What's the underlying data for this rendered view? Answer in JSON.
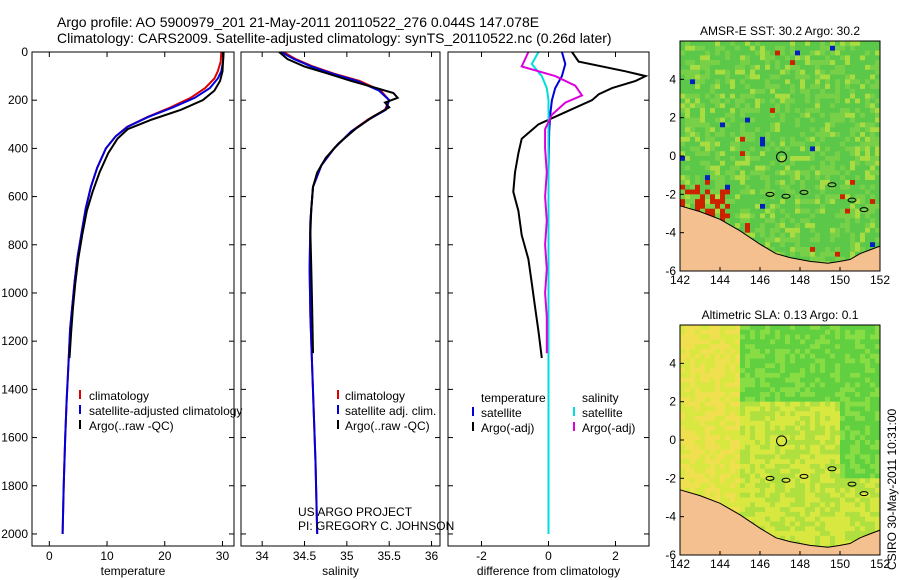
{
  "header": {
    "line1": "Argo profile: AO 5900979_201 21-May-2011 20110522_276 0.044S 147.078E",
    "line2": "Climatology: CARS2009. Satellite-adjusted climatology: synTS_20110522.nc (0.26d later)"
  },
  "side_stamp": "CSIRO 30-May-2011 10:31:00",
  "chart_data": [
    {
      "type": "line",
      "name": "temperature-panel",
      "xlabel": "temperature",
      "ylabel": "",
      "xlim": [
        -3,
        32
      ],
      "ylim": [
        2050,
        0
      ],
      "xticks": [
        0,
        10,
        20,
        30
      ],
      "xtick_labels": [
        "0",
        "10",
        "20",
        "30"
      ],
      "yticks": [
        0,
        200,
        400,
        600,
        800,
        1000,
        1200,
        1400,
        1600,
        1800,
        2000
      ],
      "ytick_labels": [
        "0",
        "200",
        "400",
        "600",
        "800",
        "1000",
        "1200",
        "1400",
        "1600",
        "1800",
        "2000"
      ],
      "legend": [
        "climatology",
        "satellite-adjusted climatology",
        "Argo(..raw -QC)"
      ],
      "legend_placement": "lower-right",
      "series": [
        {
          "name": "climatology",
          "color": "#dd0000",
          "points": [
            [
              29.8,
              0
            ],
            [
              29.7,
              40
            ],
            [
              29.2,
              80
            ],
            [
              28.6,
              110
            ],
            [
              27.0,
              150
            ],
            [
              24.5,
              190
            ],
            [
              21.0,
              230
            ],
            [
              17.0,
              270
            ],
            [
              13.5,
              310
            ],
            [
              11.5,
              350
            ],
            [
              9.8,
              400
            ],
            [
              8.3,
              480
            ],
            [
              7.2,
              560
            ],
            [
              6.3,
              650
            ],
            [
              5.6,
              750
            ],
            [
              4.9,
              850
            ],
            [
              4.4,
              950
            ],
            [
              4.0,
              1050
            ],
            [
              3.6,
              1150
            ],
            [
              3.3,
              1300
            ],
            [
              3.0,
              1450
            ],
            [
              2.75,
              1600
            ],
            [
              2.5,
              1800
            ],
            [
              2.3,
              2000
            ]
          ]
        },
        {
          "name": "satellite-adjusted climatology",
          "color": "#0000dd",
          "points": [
            [
              30.2,
              0
            ],
            [
              30.1,
              40
            ],
            [
              29.8,
              80
            ],
            [
              29.2,
              110
            ],
            [
              27.8,
              150
            ],
            [
              25.2,
              190
            ],
            [
              21.4,
              230
            ],
            [
              17.1,
              270
            ],
            [
              13.6,
              310
            ],
            [
              11.5,
              350
            ],
            [
              9.8,
              400
            ],
            [
              8.3,
              480
            ],
            [
              7.2,
              560
            ],
            [
              6.3,
              650
            ],
            [
              5.6,
              750
            ],
            [
              4.9,
              850
            ],
            [
              4.4,
              950
            ],
            [
              4.0,
              1050
            ],
            [
              3.6,
              1150
            ],
            [
              3.3,
              1300
            ],
            [
              3.0,
              1450
            ],
            [
              2.75,
              1600
            ],
            [
              2.5,
              1800
            ],
            [
              2.3,
              2000
            ]
          ]
        },
        {
          "name": "Argo(..raw -QC)",
          "color": "#000000",
          "points": [
            [
              30.2,
              0
            ],
            [
              30.1,
              40
            ],
            [
              30.0,
              80
            ],
            [
              29.6,
              120
            ],
            [
              28.6,
              160
            ],
            [
              26.6,
              200
            ],
            [
              22.8,
              240
            ],
            [
              17.8,
              280
            ],
            [
              13.6,
              320
            ],
            [
              11.8,
              360
            ],
            [
              10.2,
              420
            ],
            [
              8.7,
              500
            ],
            [
              7.5,
              580
            ],
            [
              6.5,
              660
            ],
            [
              5.7,
              760
            ],
            [
              5.0,
              860
            ],
            [
              4.5,
              960
            ],
            [
              4.1,
              1060
            ],
            [
              3.8,
              1160
            ],
            [
              3.5,
              1270
            ]
          ]
        }
      ]
    },
    {
      "type": "line",
      "name": "salinity-panel",
      "xlabel": "salinity",
      "ylabel": "",
      "xlim": [
        33.75,
        36.1
      ],
      "ylim": [
        2050,
        0
      ],
      "xticks": [
        34,
        34.5,
        35,
        35.5,
        36
      ],
      "xtick_labels": [
        "34",
        "34.5",
        "35",
        "35.5",
        "36"
      ],
      "legend": [
        "climatology",
        "satellite adj. clim.",
        "Argo(..raw -QC)"
      ],
      "legend_placement": "lower-right",
      "annotation": [
        "US ARGO PROJECT",
        "PI: GREGORY C. JOHNSON"
      ],
      "series": [
        {
          "name": "climatology",
          "color": "#dd0000",
          "points": [
            [
              34.25,
              0
            ],
            [
              34.4,
              30
            ],
            [
              34.6,
              60
            ],
            [
              34.85,
              90
            ],
            [
              35.15,
              120
            ],
            [
              35.4,
              160
            ],
            [
              35.5,
              200
            ],
            [
              35.45,
              240
            ],
            [
              35.25,
              280
            ],
            [
              35.05,
              330
            ],
            [
              34.85,
              400
            ],
            [
              34.7,
              470
            ],
            [
              34.6,
              560
            ],
            [
              34.57,
              700
            ],
            [
              34.56,
              900
            ],
            [
              34.57,
              1100
            ],
            [
              34.59,
              1300
            ],
            [
              34.61,
              1500
            ],
            [
              34.63,
              1700
            ],
            [
              34.65,
              2000
            ]
          ]
        },
        {
          "name": "satellite adj. clim.",
          "color": "#0000dd",
          "points": [
            [
              34.22,
              0
            ],
            [
              34.38,
              30
            ],
            [
              34.58,
              60
            ],
            [
              34.83,
              90
            ],
            [
              35.12,
              120
            ],
            [
              35.38,
              160
            ],
            [
              35.5,
              200
            ],
            [
              35.46,
              240
            ],
            [
              35.26,
              280
            ],
            [
              35.05,
              330
            ],
            [
              34.85,
              400
            ],
            [
              34.7,
              470
            ],
            [
              34.6,
              560
            ],
            [
              34.57,
              700
            ],
            [
              34.56,
              900
            ],
            [
              34.57,
              1100
            ],
            [
              34.59,
              1300
            ],
            [
              34.61,
              1500
            ],
            [
              34.63,
              1700
            ],
            [
              34.65,
              2000
            ]
          ]
        },
        {
          "name": "Argo(..raw -QC)",
          "color": "#000000",
          "points": [
            [
              34.2,
              0
            ],
            [
              34.3,
              30
            ],
            [
              34.5,
              60
            ],
            [
              34.78,
              90
            ],
            [
              35.05,
              120
            ],
            [
              35.35,
              150
            ],
            [
              35.55,
              170
            ],
            [
              35.6,
              190
            ],
            [
              35.45,
              210
            ],
            [
              35.5,
              230
            ],
            [
              35.3,
              270
            ],
            [
              35.1,
              320
            ],
            [
              34.9,
              380
            ],
            [
              34.75,
              440
            ],
            [
              34.65,
              500
            ],
            [
              34.6,
              560
            ],
            [
              34.58,
              650
            ],
            [
              34.57,
              750
            ],
            [
              34.58,
              900
            ],
            [
              34.59,
              1050
            ],
            [
              34.6,
              1250
            ]
          ]
        }
      ]
    },
    {
      "type": "line",
      "name": "difference-panel",
      "xlabel": "difference from climatology",
      "ylabel": "",
      "xlim": [
        -3,
        3
      ],
      "ylim": [
        2050,
        0
      ],
      "xticks": [
        -2,
        0,
        2
      ],
      "xtick_labels": [
        "-2",
        "0",
        "2"
      ],
      "legend_headers": [
        "temperature",
        "salinity"
      ],
      "legend": [
        "satellite",
        "Argo(-adj)",
        "satellite",
        "Argo(-adj)"
      ],
      "legend_placement": "lower-center",
      "series": [
        {
          "name": "temperature satellite",
          "color": "#0000dd",
          "points": [
            [
              0.4,
              0
            ],
            [
              0.5,
              50
            ],
            [
              0.4,
              100
            ],
            [
              0.2,
              150
            ],
            [
              0.1,
              200
            ],
            [
              0.05,
              260
            ],
            [
              0.02,
              330
            ],
            [
              0,
              500
            ],
            [
              0,
              1000
            ],
            [
              0,
              1500
            ],
            [
              0,
              2000
            ]
          ]
        },
        {
          "name": "temperature Argo(-adj)",
          "color": "#000000",
          "points": [
            [
              0.7,
              0
            ],
            [
              0.9,
              40
            ],
            [
              2.3,
              80
            ],
            [
              2.9,
              100
            ],
            [
              2.6,
              120
            ],
            [
              1.9,
              150
            ],
            [
              1.5,
              175
            ],
            [
              1.3,
              200
            ],
            [
              0.5,
              250
            ],
            [
              -0.3,
              300
            ],
            [
              -0.8,
              360
            ],
            [
              -0.9,
              420
            ],
            [
              -1.0,
              500
            ],
            [
              -1.05,
              580
            ],
            [
              -0.9,
              660
            ],
            [
              -0.8,
              760
            ],
            [
              -0.6,
              860
            ],
            [
              -0.5,
              960
            ],
            [
              -0.4,
              1060
            ],
            [
              -0.3,
              1160
            ],
            [
              -0.2,
              1270
            ]
          ]
        },
        {
          "name": "salinity satellite",
          "color": "#00dddd",
          "points": [
            [
              -0.3,
              0
            ],
            [
              -0.5,
              50
            ],
            [
              -0.2,
              100
            ],
            [
              -0.05,
              150
            ],
            [
              0,
              200
            ],
            [
              0,
              300
            ],
            [
              0,
              500
            ],
            [
              0,
              1000
            ],
            [
              0,
              1500
            ],
            [
              0,
              2000
            ]
          ]
        },
        {
          "name": "salinity Argo(-adj)",
          "color": "#dd00dd",
          "points": [
            [
              -0.6,
              0
            ],
            [
              -0.8,
              60
            ],
            [
              0.2,
              100
            ],
            [
              0.8,
              140
            ],
            [
              1.0,
              180
            ],
            [
              0.5,
              210
            ],
            [
              0.1,
              260
            ],
            [
              -0.1,
              320
            ],
            [
              -0.1,
              400
            ],
            [
              -0.05,
              500
            ],
            [
              -0.1,
              600
            ],
            [
              -0.05,
              700
            ],
            [
              -0.1,
              800
            ],
            [
              -0.05,
              900
            ],
            [
              -0.1,
              1000
            ],
            [
              -0.05,
              1100
            ],
            [
              -0.05,
              1250
            ]
          ]
        }
      ]
    },
    {
      "type": "heatmap",
      "name": "amsr-map",
      "title": "AMSR-E SST: 30.2 Argo: 30.2",
      "xlim": [
        142,
        152
      ],
      "ylim": [
        -6,
        6
      ],
      "xticks": [
        142,
        144,
        146,
        148,
        150,
        152
      ],
      "yticks": [
        -6,
        -4,
        -2,
        0,
        2,
        4
      ],
      "argo_marker": [
        147.078,
        -0.044
      ],
      "colors": {
        "field": "#5cc84a",
        "field_light": "#a8dc40",
        "land": "#f4c090",
        "warm": "#cc2200",
        "cold": "#0020c0"
      }
    },
    {
      "type": "heatmap",
      "name": "sla-map",
      "title": "Altimetric SLA: 0.13 Argo: 0.1",
      "xlim": [
        142,
        152
      ],
      "ylim": [
        -6,
        6
      ],
      "xticks": [
        142,
        144,
        146,
        148,
        150,
        152
      ],
      "yticks": [
        -6,
        -4,
        -2,
        0,
        2,
        4
      ],
      "argo_marker": [
        147.078,
        -0.044
      ],
      "colors": {
        "field": "#d8e840",
        "field_green": "#60d040",
        "field_yellow": "#f0e050",
        "land": "#f4c090"
      }
    }
  ]
}
